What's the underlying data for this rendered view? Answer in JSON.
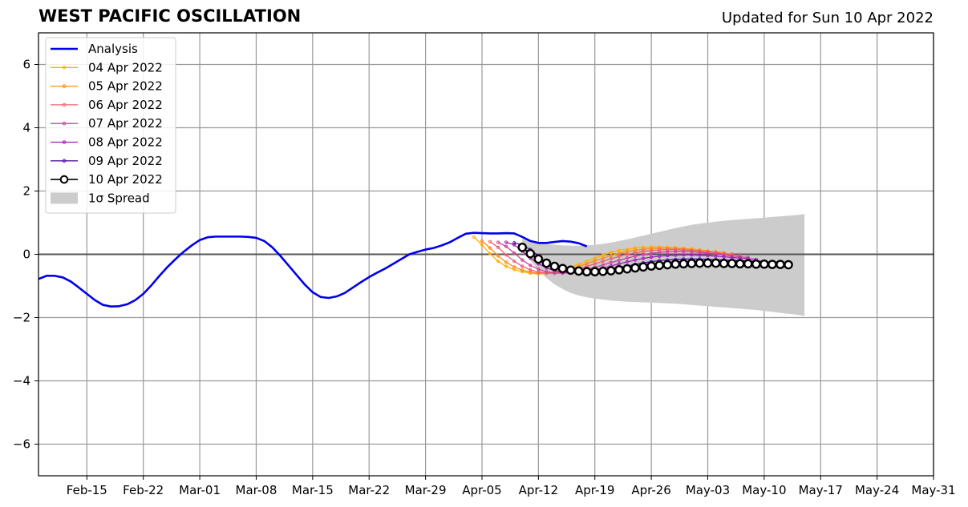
{
  "header": {
    "title": "WEST PACIFIC OSCILLATION",
    "updated": "Updated for Sun 10 Apr 2022"
  },
  "chart_data": {
    "type": "line",
    "title": "WEST PACIFIC OSCILLATION",
    "subtitle": "Updated for Sun 10 Apr 2022",
    "xlabel": "",
    "ylabel": "",
    "x_range": [
      "2022-02-09",
      "2022-05-31"
    ],
    "ylim": [
      -7,
      7
    ],
    "grid": true,
    "legend_position": "top-left",
    "x_ticks": [
      {
        "date": "2022-02-15",
        "label": "Feb-15"
      },
      {
        "date": "2022-02-22",
        "label": "Feb-22"
      },
      {
        "date": "2022-03-01",
        "label": "Mar-01"
      },
      {
        "date": "2022-03-08",
        "label": "Mar-08"
      },
      {
        "date": "2022-03-15",
        "label": "Mar-15"
      },
      {
        "date": "2022-03-22",
        "label": "Mar-22"
      },
      {
        "date": "2022-03-29",
        "label": "Mar-29"
      },
      {
        "date": "2022-04-05",
        "label": "Apr-05"
      },
      {
        "date": "2022-04-12",
        "label": "Apr-12"
      },
      {
        "date": "2022-04-19",
        "label": "Apr-19"
      },
      {
        "date": "2022-04-26",
        "label": "Apr-26"
      },
      {
        "date": "2022-05-03",
        "label": "May-03"
      },
      {
        "date": "2022-05-10",
        "label": "May-10"
      },
      {
        "date": "2022-05-17",
        "label": "May-17"
      },
      {
        "date": "2022-05-24",
        "label": "May-24"
      },
      {
        "date": "2022-05-31",
        "label": "May-31"
      }
    ],
    "y_ticks": [
      {
        "value": 6,
        "label": "6"
      },
      {
        "value": 4,
        "label": "4"
      },
      {
        "value": 2,
        "label": "2"
      },
      {
        "value": 0,
        "label": "0"
      },
      {
        "value": -2,
        "label": "−2"
      },
      {
        "value": -4,
        "label": "−4"
      },
      {
        "value": -6,
        "label": "−6"
      }
    ],
    "analysis": {
      "name": "Analysis",
      "color": "#0000ee",
      "start_date": "2022-02-09",
      "values": [
        -0.78,
        -0.68,
        -0.68,
        -0.73,
        -0.86,
        -1.05,
        -1.25,
        -1.45,
        -1.6,
        -1.65,
        -1.64,
        -1.58,
        -1.45,
        -1.25,
        -0.98,
        -0.68,
        -0.4,
        -0.15,
        0.08,
        0.28,
        0.45,
        0.54,
        0.56,
        0.56,
        0.56,
        0.56,
        0.55,
        0.52,
        0.42,
        0.22,
        -0.05,
        -0.35,
        -0.65,
        -0.95,
        -1.2,
        -1.35,
        -1.38,
        -1.33,
        -1.22,
        -1.05,
        -0.88,
        -0.72,
        -0.58,
        -0.45,
        -0.3,
        -0.15,
        0.0,
        0.08,
        0.15,
        0.2,
        0.28,
        0.38,
        0.52,
        0.65,
        0.68,
        0.67,
        0.66,
        0.66,
        0.67,
        0.66,
        0.55,
        0.42,
        0.36,
        0.36,
        0.39,
        0.42,
        0.4,
        0.35,
        0.25
      ]
    },
    "forecasts": [
      {
        "name": "04 Apr 2022",
        "color": "#ffb000",
        "start_date": "2022-04-04",
        "values": [
          0.55,
          0.3,
          0.02,
          -0.22,
          -0.38,
          -0.48,
          -0.55,
          -0.6,
          -0.62,
          -0.6,
          -0.55,
          -0.48,
          -0.4,
          -0.32,
          -0.22,
          -0.12,
          -0.02,
          0.06,
          0.12,
          0.16,
          0.2,
          0.22,
          0.23,
          0.23,
          0.22,
          0.21,
          0.19,
          0.17,
          0.14,
          0.11,
          0.08,
          0.05
        ]
      },
      {
        "name": "05 Apr 2022",
        "color": "#ff8a1e",
        "start_date": "2022-04-05",
        "values": [
          0.42,
          0.2,
          -0.05,
          -0.25,
          -0.4,
          -0.5,
          -0.56,
          -0.6,
          -0.6,
          -0.58,
          -0.53,
          -0.46,
          -0.38,
          -0.3,
          -0.2,
          -0.12,
          -0.04,
          0.03,
          0.09,
          0.13,
          0.16,
          0.18,
          0.19,
          0.19,
          0.18,
          0.17,
          0.15,
          0.13,
          0.1,
          0.07,
          0.04,
          0.01
        ]
      },
      {
        "name": "06 Apr 2022",
        "color": "#f06070",
        "start_date": "2022-04-06",
        "values": [
          0.4,
          0.22,
          -0.02,
          -0.22,
          -0.38,
          -0.49,
          -0.56,
          -0.6,
          -0.6,
          -0.58,
          -0.53,
          -0.46,
          -0.38,
          -0.3,
          -0.22,
          -0.14,
          -0.07,
          0.0,
          0.05,
          0.09,
          0.12,
          0.14,
          0.15,
          0.15,
          0.14,
          0.12,
          0.1,
          0.08,
          0.05,
          0.02,
          -0.01,
          -0.04
        ]
      },
      {
        "name": "07 Apr 2022",
        "color": "#d04098",
        "start_date": "2022-04-07",
        "values": [
          0.38,
          0.25,
          0.04,
          -0.18,
          -0.35,
          -0.47,
          -0.55,
          -0.59,
          -0.6,
          -0.58,
          -0.54,
          -0.48,
          -0.41,
          -0.34,
          -0.26,
          -0.19,
          -0.12,
          -0.06,
          -0.01,
          0.03,
          0.06,
          0.08,
          0.09,
          0.09,
          0.08,
          0.06,
          0.04,
          0.01,
          -0.02,
          -0.05,
          -0.08,
          -0.1
        ]
      },
      {
        "name": "08 Apr 2022",
        "color": "#a020b0",
        "start_date": "2022-04-08",
        "values": [
          0.38,
          0.3,
          0.1,
          -0.12,
          -0.3,
          -0.43,
          -0.52,
          -0.57,
          -0.59,
          -0.58,
          -0.55,
          -0.5,
          -0.44,
          -0.37,
          -0.3,
          -0.24,
          -0.18,
          -0.13,
          -0.09,
          -0.06,
          -0.04,
          -0.03,
          -0.02,
          -0.02,
          -0.03,
          -0.04,
          -0.06,
          -0.08,
          -0.1,
          -0.12,
          -0.14,
          -0.16
        ]
      },
      {
        "name": "09 Apr 2022",
        "color": "#5010a0",
        "start_date": "2022-04-09",
        "values": [
          0.36,
          0.3,
          0.15,
          -0.05,
          -0.25,
          -0.38,
          -0.48,
          -0.54,
          -0.57,
          -0.57,
          -0.55,
          -0.52,
          -0.47,
          -0.42,
          -0.37,
          -0.32,
          -0.27,
          -0.23,
          -0.2,
          -0.18,
          -0.16,
          -0.15,
          -0.15,
          -0.15,
          -0.16,
          -0.17,
          -0.18,
          -0.19,
          -0.2,
          -0.21,
          -0.22,
          -0.22
        ]
      },
      {
        "name": "10 Apr 2022",
        "color": "#000000",
        "start_date": "2022-04-10",
        "values": [
          0.22,
          0.02,
          -0.15,
          -0.28,
          -0.38,
          -0.45,
          -0.5,
          -0.53,
          -0.55,
          -0.55,
          -0.54,
          -0.52,
          -0.49,
          -0.46,
          -0.43,
          -0.4,
          -0.37,
          -0.35,
          -0.33,
          -0.31,
          -0.3,
          -0.29,
          -0.28,
          -0.28,
          -0.28,
          -0.29,
          -0.29,
          -0.3,
          -0.3,
          -0.31,
          -0.31,
          -0.32,
          -0.32,
          -0.33
        ]
      }
    ],
    "spread": {
      "name": "1σ Spread",
      "color": "#cccccc",
      "start_date": "2022-04-10",
      "upper": [
        0.5,
        0.45,
        0.38,
        0.33,
        0.3,
        0.28,
        0.27,
        0.27,
        0.28,
        0.3,
        0.33,
        0.37,
        0.42,
        0.47,
        0.53,
        0.59,
        0.65,
        0.71,
        0.77,
        0.83,
        0.88,
        0.93,
        0.97,
        1.0,
        1.03,
        1.06,
        1.08,
        1.1,
        1.12,
        1.14,
        1.16,
        1.18,
        1.2,
        1.22,
        1.24,
        1.27
      ],
      "lower": [
        0.1,
        -0.2,
        -0.5,
        -0.75,
        -0.95,
        -1.1,
        -1.22,
        -1.3,
        -1.36,
        -1.4,
        -1.43,
        -1.46,
        -1.48,
        -1.5,
        -1.51,
        -1.52,
        -1.53,
        -1.54,
        -1.55,
        -1.56,
        -1.58,
        -1.6,
        -1.62,
        -1.64,
        -1.66,
        -1.68,
        -1.7,
        -1.72,
        -1.74,
        -1.76,
        -1.79,
        -1.82,
        -1.85,
        -1.88,
        -1.91,
        -1.95
      ]
    }
  }
}
